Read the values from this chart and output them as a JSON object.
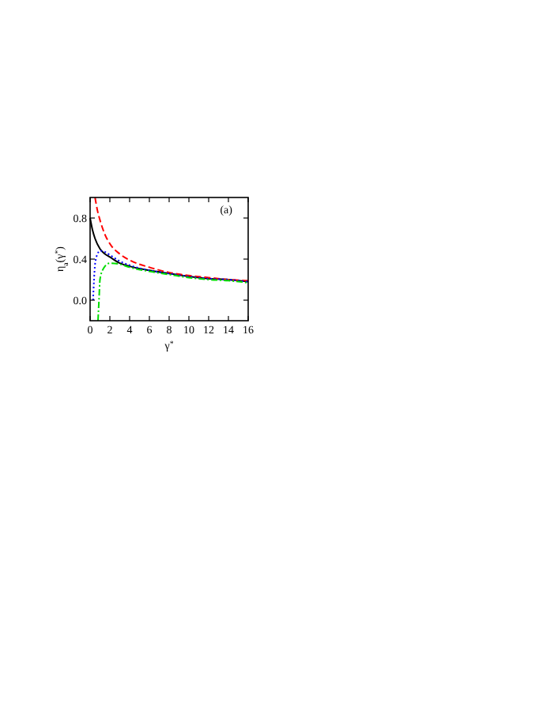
{
  "chart_data": {
    "type": "line",
    "xlabel": "γ$^{*}$",
    "ylabel": "η$_{a}$(γ$^{*}$)",
    "annotations": [
      "(a)"
    ],
    "xlim": [
      0,
      16
    ],
    "ylim": [
      -0.2,
      1.0
    ],
    "xticks": [
      0,
      2,
      4,
      6,
      8,
      10,
      12,
      14,
      16
    ],
    "yticks": [
      {
        "value": 0,
        "label": "0.0"
      },
      0.4,
      0.8
    ],
    "grid": false,
    "series": [
      {
        "color": "#000000",
        "line_style": "solid",
        "x": [
          0,
          0.25,
          0.5,
          1,
          1.5,
          2,
          3,
          4,
          6,
          8,
          10,
          12,
          14,
          16
        ],
        "values": [
          0.8,
          0.68,
          0.6,
          0.5,
          0.45,
          0.42,
          0.36,
          0.33,
          0.29,
          0.26,
          0.23,
          0.21,
          0.2,
          0.18
        ]
      },
      {
        "color": "#ff0000",
        "line_style": "dashed",
        "x": [
          0.5,
          0.75,
          1,
          1.5,
          2,
          3,
          4,
          6,
          8,
          10,
          12,
          14,
          16
        ],
        "values": [
          1.0,
          0.87,
          0.78,
          0.64,
          0.55,
          0.45,
          0.39,
          0.32,
          0.27,
          0.24,
          0.22,
          0.2,
          0.19
        ]
      },
      {
        "color": "#0000ff",
        "line_style": "dotted",
        "x": [
          0.3,
          0.4,
          0.5,
          0.75,
          1,
          1.5,
          2,
          3,
          4,
          6,
          8,
          10,
          12,
          14,
          16
        ],
        "values": [
          0.0,
          0.2,
          0.35,
          0.45,
          0.48,
          0.47,
          0.44,
          0.38,
          0.34,
          0.29,
          0.26,
          0.23,
          0.21,
          0.2,
          0.18
        ]
      },
      {
        "color": "#00dd00",
        "line_style": "dashdot",
        "x": [
          0.8,
          0.9,
          1,
          1.25,
          1.5,
          2,
          3,
          4,
          6,
          8,
          10,
          12,
          14,
          16
        ],
        "values": [
          -0.2,
          0.0,
          0.2,
          0.29,
          0.33,
          0.36,
          0.35,
          0.32,
          0.28,
          0.25,
          0.22,
          0.2,
          0.19,
          0.17
        ]
      }
    ]
  }
}
